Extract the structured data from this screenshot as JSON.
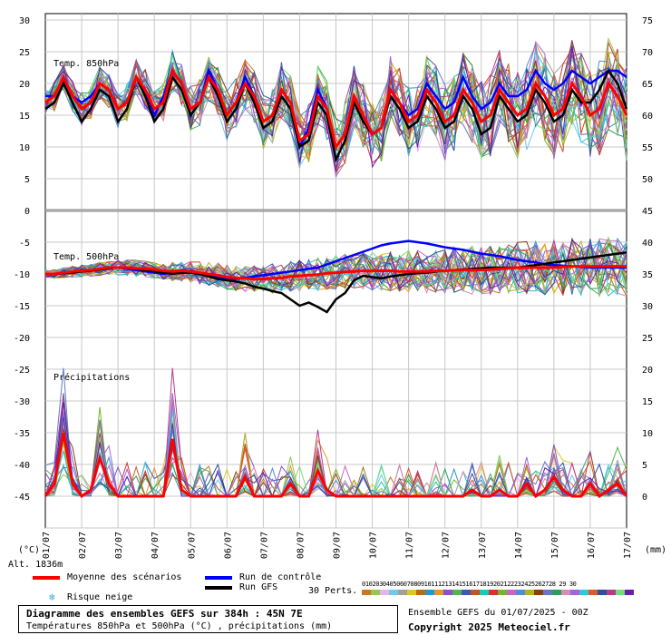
{
  "chart_data": {
    "type": "line",
    "title": "Diagramme des ensembles GEFS sur 384h : 45N 7E",
    "subtitle": "Températures 850hPa et 500hPa (°C) , précipitations (mm)",
    "panels": [
      {
        "name": "Temp. 850hPa",
        "unit": "°C"
      },
      {
        "name": "Temp. 500hPa",
        "unit": "°C"
      },
      {
        "name": "Précipitations",
        "unit": "mm"
      }
    ],
    "left_axis": {
      "label": "(°C)",
      "ticks": [
        "30",
        "25",
        "20",
        "15",
        "10",
        "5",
        "0",
        "-5",
        "-10",
        "-15",
        "-20",
        "-25",
        "-30",
        "-35",
        "-40",
        "-45"
      ],
      "ylim": [
        -45,
        30
      ]
    },
    "right_axis": {
      "label": "(mm)",
      "ticks": [
        "75",
        "70",
        "65",
        "60",
        "55",
        "50",
        "45",
        "40",
        "35",
        "30",
        "25",
        "20",
        "15",
        "10",
        "5",
        "0"
      ],
      "ylim": [
        0,
        75
      ]
    },
    "x_axis": {
      "ticks": [
        "01/07",
        "02/07",
        "03/07",
        "04/07",
        "05/07",
        "06/07",
        "07/07",
        "08/07",
        "09/07",
        "10/07",
        "11/07",
        "12/07",
        "13/07",
        "14/07",
        "15/07",
        "16/07",
        "17/07"
      ]
    },
    "x": [
      0,
      6,
      12,
      18,
      24,
      30,
      36,
      42,
      48,
      54,
      60,
      66,
      72,
      78,
      84,
      90,
      96,
      102,
      108,
      114,
      120,
      126,
      132,
      138,
      144,
      150,
      156,
      162,
      168,
      174,
      180,
      186,
      192,
      198,
      204,
      210,
      216,
      222,
      228,
      234,
      240,
      246,
      252,
      258,
      264,
      270,
      276,
      282,
      288,
      294,
      300,
      306,
      312,
      318,
      324,
      330,
      336,
      342,
      348,
      354,
      360,
      366,
      372,
      378,
      384
    ],
    "x_unit": "hours",
    "series": [
      {
        "name": "Moyenne des scénarios",
        "color": "#ff0000",
        "t850": [
          17,
          18,
          21,
          18,
          16,
          17,
          20,
          19,
          16,
          17,
          21,
          19,
          16,
          17,
          22,
          20,
          16,
          17,
          21,
          19,
          15,
          17,
          20,
          18,
          14,
          15,
          19,
          17,
          11,
          12,
          18,
          16,
          10,
          12,
          18,
          15,
          12,
          13,
          19,
          17,
          14,
          15,
          19,
          17,
          14,
          15,
          19,
          17,
          14,
          15,
          19,
          17,
          15,
          16,
          20,
          18,
          15,
          16,
          20,
          18,
          15,
          16,
          20,
          18,
          15
        ],
        "t500": [
          -10,
          -10,
          -9.8,
          -9.6,
          -9.5,
          -9.4,
          -9.2,
          -9,
          -9,
          -9,
          -9.1,
          -9.2,
          -9.3,
          -9.5,
          -9.6,
          -9.5,
          -9.6,
          -9.8,
          -10,
          -10.2,
          -10.5,
          -10.6,
          -10.7,
          -10.8,
          -10.8,
          -10.7,
          -10.6,
          -10.4,
          -10.3,
          -10.2,
          -10.1,
          -9.9,
          -9.8,
          -9.7,
          -9.6,
          -9.5,
          -9.5,
          -9.5,
          -9.5,
          -9.6,
          -9.6,
          -9.6,
          -9.6,
          -9.5,
          -9.5,
          -9.4,
          -9.4,
          -9.4,
          -9.4,
          -9.3,
          -9.2,
          -9.1,
          -9,
          -9,
          -9,
          -9,
          -9,
          -8.9,
          -8.8,
          -8.8,
          -8.8,
          -8.8,
          -8.8,
          -8.8,
          -8.8
        ],
        "precip": [
          0,
          2,
          10,
          2,
          0,
          1,
          6,
          2,
          0,
          0,
          0,
          0,
          0,
          0,
          9,
          1,
          0,
          0,
          0,
          0,
          0,
          0,
          3,
          0,
          0,
          0,
          0,
          2,
          0,
          0,
          4,
          1,
          0,
          0,
          0,
          0,
          0,
          0,
          0,
          0,
          0,
          0,
          0,
          0,
          0,
          0,
          0,
          1,
          0,
          0,
          1,
          0,
          0,
          2,
          0,
          1,
          3,
          1,
          0,
          0,
          2,
          0,
          1,
          2,
          0
        ]
      },
      {
        "name": "Run de contrôle",
        "color": "#0000ff",
        "t850": [
          18,
          18,
          21,
          18,
          17,
          18,
          20,
          19,
          16,
          17,
          21,
          19,
          15,
          18,
          22,
          20,
          15,
          17,
          22,
          19,
          15,
          17,
          21,
          18,
          14,
          15,
          19,
          17,
          10,
          13,
          19,
          16,
          10,
          12,
          18,
          15,
          12,
          13,
          19,
          17,
          15,
          16,
          20,
          18,
          16,
          17,
          21,
          18,
          16,
          17,
          20,
          18,
          18,
          19,
          22,
          20,
          19,
          20,
          22,
          21,
          20,
          21,
          22,
          22,
          21
        ],
        "t500": [
          -10,
          -10,
          -9.9,
          -9.7,
          -9.5,
          -9.4,
          -9.2,
          -9.1,
          -9,
          -9.2,
          -9.4,
          -9.6,
          -9.8,
          -10,
          -9.8,
          -9.6,
          -9.5,
          -9.8,
          -10.3,
          -10.6,
          -10.7,
          -10.8,
          -10.6,
          -10.4,
          -10.2,
          -10,
          -9.8,
          -9.6,
          -9.4,
          -9.2,
          -9,
          -8.5,
          -8,
          -7.5,
          -7,
          -6.5,
          -6,
          -5.5,
          -5.2,
          -5,
          -4.8,
          -5,
          -5.2,
          -5.5,
          -5.8,
          -6,
          -6.2,
          -6.5,
          -6.8,
          -7,
          -7.2,
          -7.5,
          -7.8,
          -8,
          -8.2,
          -8.5,
          -8.6,
          -8.7,
          -8.8,
          -8.9,
          -9,
          -9,
          -9,
          -9,
          -9
        ]
      },
      {
        "name": "Run GFS",
        "color": "#000000",
        "t850": [
          16,
          17,
          20,
          17,
          14,
          16,
          19,
          18,
          14,
          16,
          21,
          18,
          14,
          16,
          21,
          19,
          15,
          17,
          21,
          18,
          14,
          16,
          20,
          17,
          13,
          14,
          18,
          16,
          10,
          11,
          17,
          15,
          8,
          11,
          17,
          14,
          12,
          13,
          18,
          16,
          13,
          14,
          18,
          16,
          13,
          14,
          18,
          16,
          12,
          13,
          18,
          16,
          14,
          15,
          19,
          17,
          14,
          15,
          19,
          17,
          17,
          19,
          22,
          20,
          16
        ],
        "t500": [
          -10,
          -10,
          -9.9,
          -9.8,
          -9.6,
          -9.5,
          -9.3,
          -9.1,
          -9,
          -9,
          -9.2,
          -9.4,
          -9.6,
          -9.8,
          -10,
          -9.8,
          -9.8,
          -10,
          -10.4,
          -10.8,
          -11,
          -11.2,
          -11.5,
          -12,
          -12.3,
          -12.7,
          -13,
          -14,
          -15,
          -14.5,
          -15.2,
          -16,
          -14,
          -13,
          -11,
          -10.3,
          -10.5,
          -10.7,
          -10.4,
          -10.2,
          -10,
          -9.9,
          -9.8,
          -9.6,
          -9.5,
          -9.4,
          -9.3,
          -9.2,
          -9.1,
          -9,
          -9,
          -9,
          -9,
          -8.8,
          -8.6,
          -8.4,
          -8.2,
          -8,
          -7.8,
          -7.6,
          -7.4,
          -7.2,
          -7,
          -6.8,
          -6.6
        ]
      }
    ],
    "perturbations": [
      "01",
      "02",
      "03",
      "04",
      "05",
      "06",
      "07",
      "08",
      "09",
      "10",
      "11",
      "12",
      "13",
      "14",
      "15",
      "16",
      "17",
      "18",
      "19",
      "20",
      "21",
      "22",
      "23",
      "24",
      "25",
      "26",
      "27",
      "28",
      "29",
      "30"
    ],
    "perturbation_colors": [
      "#c8781e",
      "#96c850",
      "#e6b4e6",
      "#6ec8f0",
      "#a0a0a0",
      "#dcc828",
      "#b46e14",
      "#2896c8",
      "#e6962d",
      "#8c50c8",
      "#50b450",
      "#3c5ab4",
      "#c85028",
      "#1ec8b4",
      "#d23232",
      "#78b428",
      "#c864c8",
      "#508cdc",
      "#b4b41e",
      "#8c3c14",
      "#6478c8",
      "#28a05a",
      "#dc8cb4",
      "#a064dc",
      "#32c8dc",
      "#dc5a28",
      "#2850a0",
      "#b43c8c",
      "#78dc78",
      "#641eb4"
    ]
  },
  "labels": {
    "t850_panel": "Temp. 850hPa",
    "t500_panel": "Temp. 500hPa",
    "precip_panel": "Précipitations",
    "unit_left": "(°C)",
    "unit_right": "(mm)",
    "altitude": "Alt. 1836m",
    "mean_legend": "Moyenne des scénarios",
    "control_legend": "Run de contrôle",
    "gfs_legend": "Run GFS",
    "snow_legend": "Risque neige",
    "snow_icon": "❄",
    "perts_label": "30 Perts.",
    "perts_numbers": "01020304050607080910111213141516171819202122232425262728 29 30",
    "footer_title": "Diagramme des ensembles GEFS sur 384h : 45N 7E",
    "footer_subtitle": "Températures 850hPa et 500hPa (°C) , précipitations (mm)",
    "run_info": "Ensemble GEFS du 01/07/2025 - 00Z",
    "copyright": "Copyright 2025 Meteociel.fr"
  },
  "colors": {
    "grid": "#c8c8c8",
    "mean": "#ff0000",
    "control": "#0000ff",
    "gfs": "#000000",
    "frame": "#000000"
  }
}
